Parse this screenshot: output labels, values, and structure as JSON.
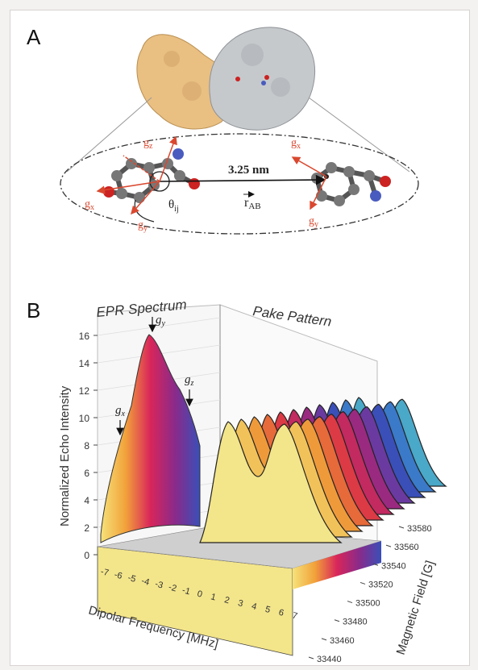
{
  "panel_a": {
    "letter": "A",
    "distance_label": "3.25 nm",
    "vector_label": "r",
    "vector_subscript": "AB",
    "angle_label": "θ",
    "angle_subscript": "ij",
    "left_axes": [
      {
        "key": "gz",
        "base": "g",
        "sub": "z"
      },
      {
        "key": "gx",
        "base": "g",
        "sub": "x"
      },
      {
        "key": "gy",
        "base": "g",
        "sub": "y"
      }
    ],
    "right_axes": [
      {
        "key": "gx",
        "base": "g",
        "sub": "x"
      },
      {
        "key": "gy",
        "base": "g",
        "sub": "y"
      }
    ]
  },
  "panel_b": {
    "letter": "B",
    "header_left": "EPR Spectrum",
    "header_right": "Pake Pattern",
    "y_axis_label": "Normalized Echo Intensity",
    "x_axis_label": "Dipolar Frequency [MHz]",
    "z_axis_label": "Magnetic Field [G]",
    "y_ticks": [
      "0",
      "2",
      "4",
      "6",
      "8",
      "10",
      "12",
      "14",
      "16"
    ],
    "x_ticks": [
      "-7",
      "-6",
      "-5",
      "-4",
      "-3",
      "-2",
      "-1",
      "0",
      "1",
      "2",
      "3",
      "4",
      "5",
      "6",
      "7"
    ],
    "z_ticks": [
      "33440",
      "33460",
      "33480",
      "33500",
      "33520",
      "33540",
      "33560",
      "33580"
    ],
    "markers": [
      {
        "base": "g",
        "sub": "y"
      },
      {
        "base": "g",
        "sub": "z"
      },
      {
        "base": "g",
        "sub": "x"
      }
    ]
  },
  "colors": {
    "protein_left": "#e9bf82",
    "protein_right": "#c6c9cc",
    "atom_carbon": "#777777",
    "atom_oxygen": "#cc2222",
    "atom_nitrogen": "#4a5bbf",
    "axis_arrow": "#d9482f"
  }
}
